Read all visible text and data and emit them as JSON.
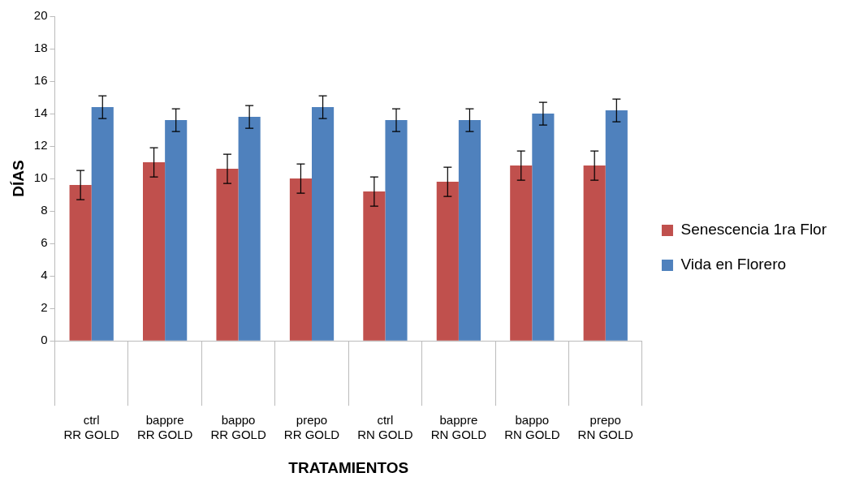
{
  "chart_data": {
    "type": "bar",
    "xlabel": "TRATAMIENTOS",
    "ylabel": "DÍAS",
    "categories": [
      "ctrl\nRR GOLD",
      "bappre\nRR GOLD",
      "bappo\nRR GOLD",
      "prepo\nRR GOLD",
      "ctrl\nRN GOLD",
      "bappre\nRN GOLD",
      "bappo\nRN GOLD",
      "prepo\nRN GOLD"
    ],
    "series": [
      {
        "name": "Senescencia 1ra Flor",
        "color": "#c0504d",
        "values": [
          9.6,
          11.0,
          10.6,
          10.0,
          9.2,
          9.8,
          10.8,
          10.8
        ],
        "errors": [
          0.9,
          0.9,
          0.9,
          0.9,
          0.9,
          0.9,
          0.9,
          0.9
        ]
      },
      {
        "name": "Vida en Florero",
        "color": "#4f81bd",
        "values": [
          14.4,
          13.6,
          13.8,
          14.4,
          13.6,
          13.6,
          14.0,
          14.2
        ],
        "errors": [
          0.7,
          0.7,
          0.7,
          0.7,
          0.7,
          0.7,
          0.7,
          0.7
        ]
      }
    ],
    "ylim": [
      0,
      20
    ],
    "yticks": [
      0,
      2,
      4,
      6,
      8,
      10,
      12,
      14,
      16,
      18,
      20
    ],
    "grid": false,
    "legend": "right"
  }
}
